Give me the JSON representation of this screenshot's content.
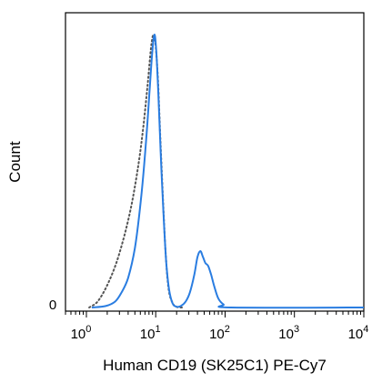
{
  "chart_data": {
    "type": "line",
    "title": "",
    "xlabel": "Human CD19 (SK25C1) PE-Cy7",
    "ylabel": "Count",
    "xscale": "log",
    "xlim": [
      0.5,
      10000
    ],
    "ylim": [
      0,
      100
    ],
    "x_ticks": [
      {
        "base": "10",
        "exp": "0",
        "value": 1
      },
      {
        "base": "10",
        "exp": "1",
        "value": 10
      },
      {
        "base": "10",
        "exp": "2",
        "value": 100
      },
      {
        "base": "10",
        "exp": "3",
        "value": 1000
      },
      {
        "base": "10",
        "exp": "4",
        "value": 10000
      }
    ],
    "y_tick_label": "0",
    "grid": false,
    "legend": "none",
    "series": [
      {
        "style": "solid",
        "color": "#2a7de1",
        "points": [
          [
            1.2,
            0
          ],
          [
            1.9,
            0.5
          ],
          [
            2.6,
            2
          ],
          [
            3.2,
            5
          ],
          [
            4.0,
            10
          ],
          [
            5.0,
            20
          ],
          [
            6.1,
            36
          ],
          [
            7.2,
            55
          ],
          [
            8.1,
            72
          ],
          [
            8.9,
            86
          ],
          [
            9.6,
            92
          ],
          [
            10.2,
            86
          ],
          [
            10.9,
            72
          ],
          [
            11.8,
            52
          ],
          [
            12.9,
            32
          ],
          [
            14.2,
            15
          ],
          [
            15.6,
            6
          ],
          [
            17.4,
            1.5
          ],
          [
            19.7,
            0.3
          ],
          [
            23,
            0.5
          ],
          [
            27,
            2
          ],
          [
            31,
            5
          ],
          [
            36,
            11
          ],
          [
            40,
            17
          ],
          [
            44,
            19
          ],
          [
            48,
            17
          ],
          [
            52,
            15
          ],
          [
            57,
            14
          ],
          [
            63,
            11
          ],
          [
            70,
            7
          ],
          [
            80,
            3
          ],
          [
            95,
            1
          ],
          [
            120,
            0
          ],
          [
            10000,
            0
          ]
        ]
      },
      {
        "style": "dotted",
        "color": "#555555",
        "points": [
          [
            1.1,
            0
          ],
          [
            1.45,
            2
          ],
          [
            1.95,
            7
          ],
          [
            2.7,
            15
          ],
          [
            3.6,
            25
          ],
          [
            4.6,
            36
          ],
          [
            5.7,
            49
          ],
          [
            6.7,
            62
          ],
          [
            7.7,
            76
          ],
          [
            8.6,
            88
          ],
          [
            9.3,
            92
          ],
          [
            10.0,
            88
          ],
          [
            10.8,
            76
          ],
          [
            11.7,
            56
          ],
          [
            12.8,
            35
          ],
          [
            14.0,
            17
          ],
          [
            15.4,
            6
          ],
          [
            17.5,
            1.5
          ],
          [
            20,
            0.2
          ],
          [
            25,
            0
          ]
        ]
      }
    ]
  }
}
